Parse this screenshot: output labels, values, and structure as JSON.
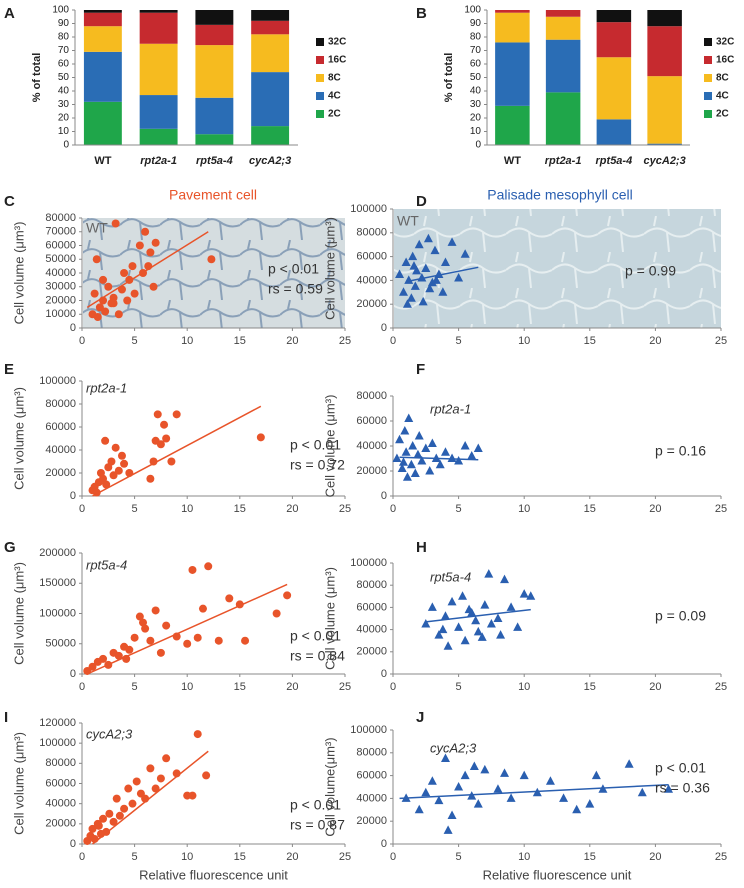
{
  "chart_data": [
    {
      "type": "bar",
      "stacked": true,
      "panel": "A",
      "y_label": "% of total",
      "categories": [
        "WT",
        "rpt2a-1",
        "rpt5a-4",
        "cycA2;3"
      ],
      "series": [
        {
          "name": "2C",
          "color": "#1fa64a",
          "values": [
            32,
            12,
            8,
            14
          ]
        },
        {
          "name": "4C",
          "color": "#2a6db5",
          "values": [
            37,
            25,
            27,
            40
          ]
        },
        {
          "name": "8C",
          "color": "#f6bb1f",
          "values": [
            19,
            38,
            39,
            28
          ]
        },
        {
          "name": "16C",
          "color": "#c62a2f",
          "values": [
            10,
            23,
            15,
            10
          ]
        },
        {
          "name": "32C",
          "color": "#111111",
          "values": [
            2,
            2,
            11,
            8
          ]
        }
      ],
      "ylim": [
        0,
        100
      ],
      "yticks": [
        0,
        10,
        20,
        30,
        40,
        50,
        60,
        70,
        80,
        90,
        100
      ]
    },
    {
      "type": "bar",
      "stacked": true,
      "panel": "B",
      "y_label": "% of total",
      "categories": [
        "WT",
        "rpt2a-1",
        "rpt5a-4",
        "cycA2;3"
      ],
      "series": [
        {
          "name": "2C",
          "color": "#1fa64a",
          "values": [
            29,
            39,
            0,
            0
          ]
        },
        {
          "name": "4C",
          "color": "#2a6db5",
          "values": [
            47,
            39,
            19,
            1
          ]
        },
        {
          "name": "8C",
          "color": "#f6bb1f",
          "values": [
            22,
            17,
            46,
            50
          ]
        },
        {
          "name": "16C",
          "color": "#c62a2f",
          "values": [
            2,
            5,
            26,
            37
          ]
        },
        {
          "name": "32C",
          "color": "#111111",
          "values": [
            0,
            0,
            9,
            12
          ]
        }
      ],
      "ylim": [
        0,
        100
      ],
      "yticks": [
        0,
        10,
        20,
        30,
        40,
        50,
        60,
        70,
        80,
        90,
        100
      ]
    },
    {
      "type": "scatter",
      "panel": "C",
      "title": "Pavement cell",
      "label": "WT",
      "y_label": "Cell volume (μm³)",
      "color": "#e8542a",
      "marker": "circle",
      "background": true,
      "x": [
        1,
        1.2,
        1.5,
        1.7,
        2,
        2.2,
        2.5,
        2.8,
        3,
        3.2,
        3.5,
        3.8,
        4,
        4.3,
        4.5,
        5,
        5.5,
        5.8,
        6,
        6.3,
        6.5,
        6.8,
        7,
        4.8,
        1.4,
        12.3,
        2,
        3
      ],
      "values": [
        10000,
        25000,
        8000,
        15000,
        20000,
        12000,
        30000,
        18000,
        22000,
        76000,
        10000,
        28000,
        40000,
        20000,
        35000,
        25000,
        60000,
        40000,
        70000,
        45000,
        55000,
        30000,
        62000,
        45000,
        50000,
        50000,
        35000,
        18000
      ],
      "trend": {
        "x": [
          0.5,
          12
        ],
        "y": [
          15000,
          70000
        ]
      },
      "annotations": [
        "p < 0.01",
        "rs = 0.59"
      ],
      "xlim": [
        0,
        25
      ],
      "xticks": [
        0,
        5,
        10,
        15,
        20,
        25
      ],
      "ylim": [
        0,
        80000
      ],
      "yticks": [
        0,
        10000,
        20000,
        30000,
        40000,
        50000,
        60000,
        70000,
        80000
      ]
    },
    {
      "type": "scatter",
      "panel": "D",
      "title": "Palisade mesophyll cell",
      "label": "WT",
      "y_label": "Cell volume (μm³)",
      "color": "#2a5fb0",
      "marker": "triangle",
      "background": true,
      "x": [
        0.5,
        0.8,
        1,
        1.2,
        1.4,
        1.5,
        1.7,
        1.8,
        2,
        2.2,
        2.3,
        2.5,
        2.7,
        3,
        3.2,
        3.5,
        3.8,
        4,
        4.5,
        5,
        5.5,
        1.1,
        2.8,
        1.6,
        3.3
      ],
      "values": [
        45000,
        30000,
        55000,
        40000,
        25000,
        60000,
        35000,
        48000,
        70000,
        42000,
        22000,
        50000,
        75000,
        38000,
        65000,
        45000,
        30000,
        55000,
        72000,
        42000,
        62000,
        20000,
        33000,
        52000,
        40000
      ],
      "trend": {
        "x": [
          1,
          6.5
        ],
        "y": [
          39000,
          51000
        ]
      },
      "annotations": [
        "p = 0.99"
      ],
      "xlim": [
        0,
        25
      ],
      "xticks": [
        0,
        5,
        10,
        15,
        20,
        25
      ],
      "ylim": [
        0,
        100000
      ],
      "yticks": [
        0,
        20000,
        40000,
        60000,
        80000,
        100000
      ]
    },
    {
      "type": "scatter",
      "panel": "E",
      "label": "rpt2a-1",
      "y_label": "Cell volume (μm³)",
      "color": "#e8542a",
      "marker": "circle",
      "x": [
        1,
        1.2,
        1.4,
        1.6,
        1.8,
        2,
        2.2,
        2.5,
        2.8,
        3,
        3.2,
        3.5,
        4,
        4.5,
        2.3,
        6.5,
        7,
        7.2,
        7.5,
        7.8,
        8,
        8.5,
        9,
        17,
        6.8,
        3.8
      ],
      "values": [
        5000,
        8000,
        3000,
        12000,
        20000,
        15000,
        48000,
        25000,
        30000,
        18000,
        42000,
        22000,
        28000,
        20000,
        10000,
        15000,
        48000,
        71000,
        45000,
        62000,
        50000,
        30000,
        71000,
        51000,
        30000,
        35000
      ],
      "trend": {
        "x": [
          1,
          17
        ],
        "y": [
          0,
          78000
        ]
      },
      "annotations": [
        "p < 0.01",
        "rs = 0.72"
      ],
      "xlim": [
        0,
        25
      ],
      "xticks": [
        0,
        5,
        10,
        15,
        20,
        25
      ],
      "ylim": [
        0,
        100000
      ],
      "yticks": [
        0,
        20000,
        40000,
        60000,
        80000,
        100000
      ]
    },
    {
      "type": "scatter",
      "panel": "F",
      "label": "rpt2a-1",
      "y_label": "Cell volume (μm³)",
      "color": "#2a5fb0",
      "marker": "triangle",
      "x": [
        0.3,
        0.5,
        0.7,
        0.9,
        1,
        1.2,
        1.4,
        1.5,
        1.7,
        1.9,
        2,
        2.2,
        2.5,
        2.8,
        3,
        3.3,
        3.6,
        4,
        4.5,
        5,
        5.5,
        6,
        6.5,
        1.1,
        0.8
      ],
      "values": [
        30000,
        45000,
        22000,
        52000,
        35000,
        62000,
        25000,
        40000,
        18000,
        33000,
        48000,
        28000,
        38000,
        20000,
        42000,
        30000,
        25000,
        35000,
        30000,
        28000,
        40000,
        32000,
        38000,
        15000,
        27000
      ],
      "trend": {
        "x": [
          0.5,
          6.5
        ],
        "y": [
          31000,
          29000
        ]
      },
      "annotations": [
        "p = 0.16"
      ],
      "xlim": [
        0,
        25
      ],
      "xticks": [
        0,
        5,
        10,
        15,
        20,
        25
      ],
      "ylim": [
        0,
        80000
      ],
      "yticks": [
        0,
        20000,
        40000,
        60000,
        80000
      ]
    },
    {
      "type": "scatter",
      "panel": "G",
      "label": "rpt5a-4",
      "y_label": "Cell volume (μm³)",
      "color": "#e8542a",
      "marker": "circle",
      "x": [
        0.5,
        1,
        1.5,
        2,
        2.5,
        3,
        3.5,
        4,
        4.5,
        5,
        5.5,
        6,
        6.5,
        7,
        7.5,
        8,
        9,
        10,
        10.5,
        11,
        11.5,
        12,
        13,
        14,
        15,
        15.5,
        18.5,
        19.5,
        4.2,
        5.8
      ],
      "values": [
        5000,
        12000,
        20000,
        25000,
        15000,
        35000,
        30000,
        45000,
        40000,
        60000,
        95000,
        75000,
        55000,
        105000,
        35000,
        80000,
        62000,
        50000,
        172000,
        60000,
        108000,
        178000,
        55000,
        125000,
        115000,
        55000,
        100000,
        130000,
        25000,
        85000
      ],
      "trend": {
        "x": [
          0.5,
          19.5
        ],
        "y": [
          0,
          148000
        ]
      },
      "annotations": [
        "p < 0.01",
        "rs = 0.84"
      ],
      "xlim": [
        0,
        25
      ],
      "xticks": [
        0,
        5,
        10,
        15,
        20,
        25
      ],
      "ylim": [
        0,
        200000
      ],
      "yticks": [
        0,
        50000,
        100000,
        150000,
        200000
      ]
    },
    {
      "type": "scatter",
      "panel": "H",
      "label": "rpt5a-4",
      "y_label": "Cell volume (μm³)",
      "color": "#2a5fb0",
      "marker": "triangle",
      "x": [
        2.5,
        3,
        3.5,
        4,
        4.2,
        4.5,
        5,
        5.3,
        5.5,
        6,
        6.3,
        6.5,
        7,
        7.3,
        7.5,
        8,
        8.2,
        8.5,
        9,
        9.5,
        10,
        10.5,
        3.8,
        5.8,
        6.8
      ],
      "values": [
        45000,
        60000,
        35000,
        52000,
        25000,
        65000,
        42000,
        70000,
        30000,
        55000,
        48000,
        38000,
        62000,
        90000,
        45000,
        50000,
        35000,
        85000,
        60000,
        42000,
        72000,
        70000,
        40000,
        58000,
        33000
      ],
      "trend": {
        "x": [
          2.5,
          10.5
        ],
        "y": [
          47000,
          58000
        ]
      },
      "annotations": [
        "p = 0.09"
      ],
      "xlim": [
        0,
        25
      ],
      "xticks": [
        0,
        5,
        10,
        15,
        20,
        25
      ],
      "ylim": [
        0,
        100000
      ],
      "yticks": [
        0,
        20000,
        40000,
        60000,
        80000,
        100000
      ]
    },
    {
      "type": "scatter",
      "panel": "I",
      "label": "cycA2;3",
      "y_label": "Cell volume (μm³)",
      "x_label": "Relative fluorescence unit",
      "color": "#e8542a",
      "marker": "circle",
      "x": [
        0.5,
        0.8,
        1,
        1.2,
        1.5,
        1.8,
        2,
        2.3,
        2.6,
        3,
        3.3,
        3.6,
        4,
        4.4,
        4.8,
        5.2,
        5.6,
        6,
        6.5,
        7,
        7.5,
        8,
        9,
        10,
        10.5,
        11,
        11.8,
        1.6
      ],
      "values": [
        3000,
        8000,
        15000,
        5000,
        20000,
        10000,
        25000,
        12000,
        30000,
        22000,
        45000,
        28000,
        35000,
        55000,
        40000,
        62000,
        50000,
        45000,
        75000,
        55000,
        65000,
        85000,
        70000,
        48000,
        48000,
        109000,
        68000,
        18000
      ],
      "trend": {
        "x": [
          1,
          12
        ],
        "y": [
          0,
          92000
        ]
      },
      "annotations": [
        "p < 0.01",
        "rs = 0.87"
      ],
      "xlim": [
        0,
        25
      ],
      "xticks": [
        0,
        5,
        10,
        15,
        20,
        25
      ],
      "ylim": [
        0,
        120000
      ],
      "yticks": [
        0,
        20000,
        40000,
        60000,
        80000,
        100000,
        120000
      ]
    },
    {
      "type": "scatter",
      "panel": "J",
      "label": "cycA2;3",
      "y_label": "Cell volume(μm³)",
      "x_label": "Relative fluorescence unit",
      "color": "#2a5fb0",
      "marker": "triangle",
      "x": [
        1,
        2,
        2.5,
        3,
        3.5,
        4,
        4.5,
        5,
        5.5,
        6,
        6.5,
        7,
        8,
        8.5,
        9,
        10,
        11,
        12,
        13,
        14,
        15,
        15.5,
        16,
        18,
        19,
        21,
        4.2,
        6.2
      ],
      "values": [
        40000,
        30000,
        45000,
        55000,
        38000,
        75000,
        25000,
        50000,
        60000,
        42000,
        35000,
        65000,
        48000,
        62000,
        40000,
        60000,
        45000,
        55000,
        40000,
        30000,
        35000,
        60000,
        48000,
        70000,
        45000,
        48000,
        12000,
        68000
      ],
      "trend": {
        "x": [
          0.5,
          21
        ],
        "y": [
          40000,
          52000
        ]
      },
      "annotations": [
        "p < 0.01",
        "rs = 0.36"
      ],
      "xlim": [
        0,
        25
      ],
      "xticks": [
        0,
        5,
        10,
        15,
        20,
        25
      ],
      "ylim": [
        0,
        100000
      ],
      "yticks": [
        0,
        20000,
        40000,
        60000,
        80000,
        100000
      ]
    }
  ]
}
